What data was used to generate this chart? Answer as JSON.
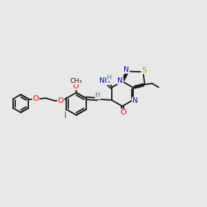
{
  "bg_color": "#e8e8e8",
  "bond_color": "#1a1a1a",
  "bond_width": 1.4,
  "dbo": 0.012,
  "figsize": [
    3.0,
    3.0
  ],
  "dpi": 100,
  "xlim": [
    -0.15,
    1.05
  ],
  "ylim": [
    0.18,
    0.82
  ],
  "colors": {
    "O": "#ff0000",
    "N": "#0000cc",
    "S": "#aaaa00",
    "I": "#cc00cc",
    "H_stereo": "#4a8080",
    "C": "#1a1a1a"
  }
}
